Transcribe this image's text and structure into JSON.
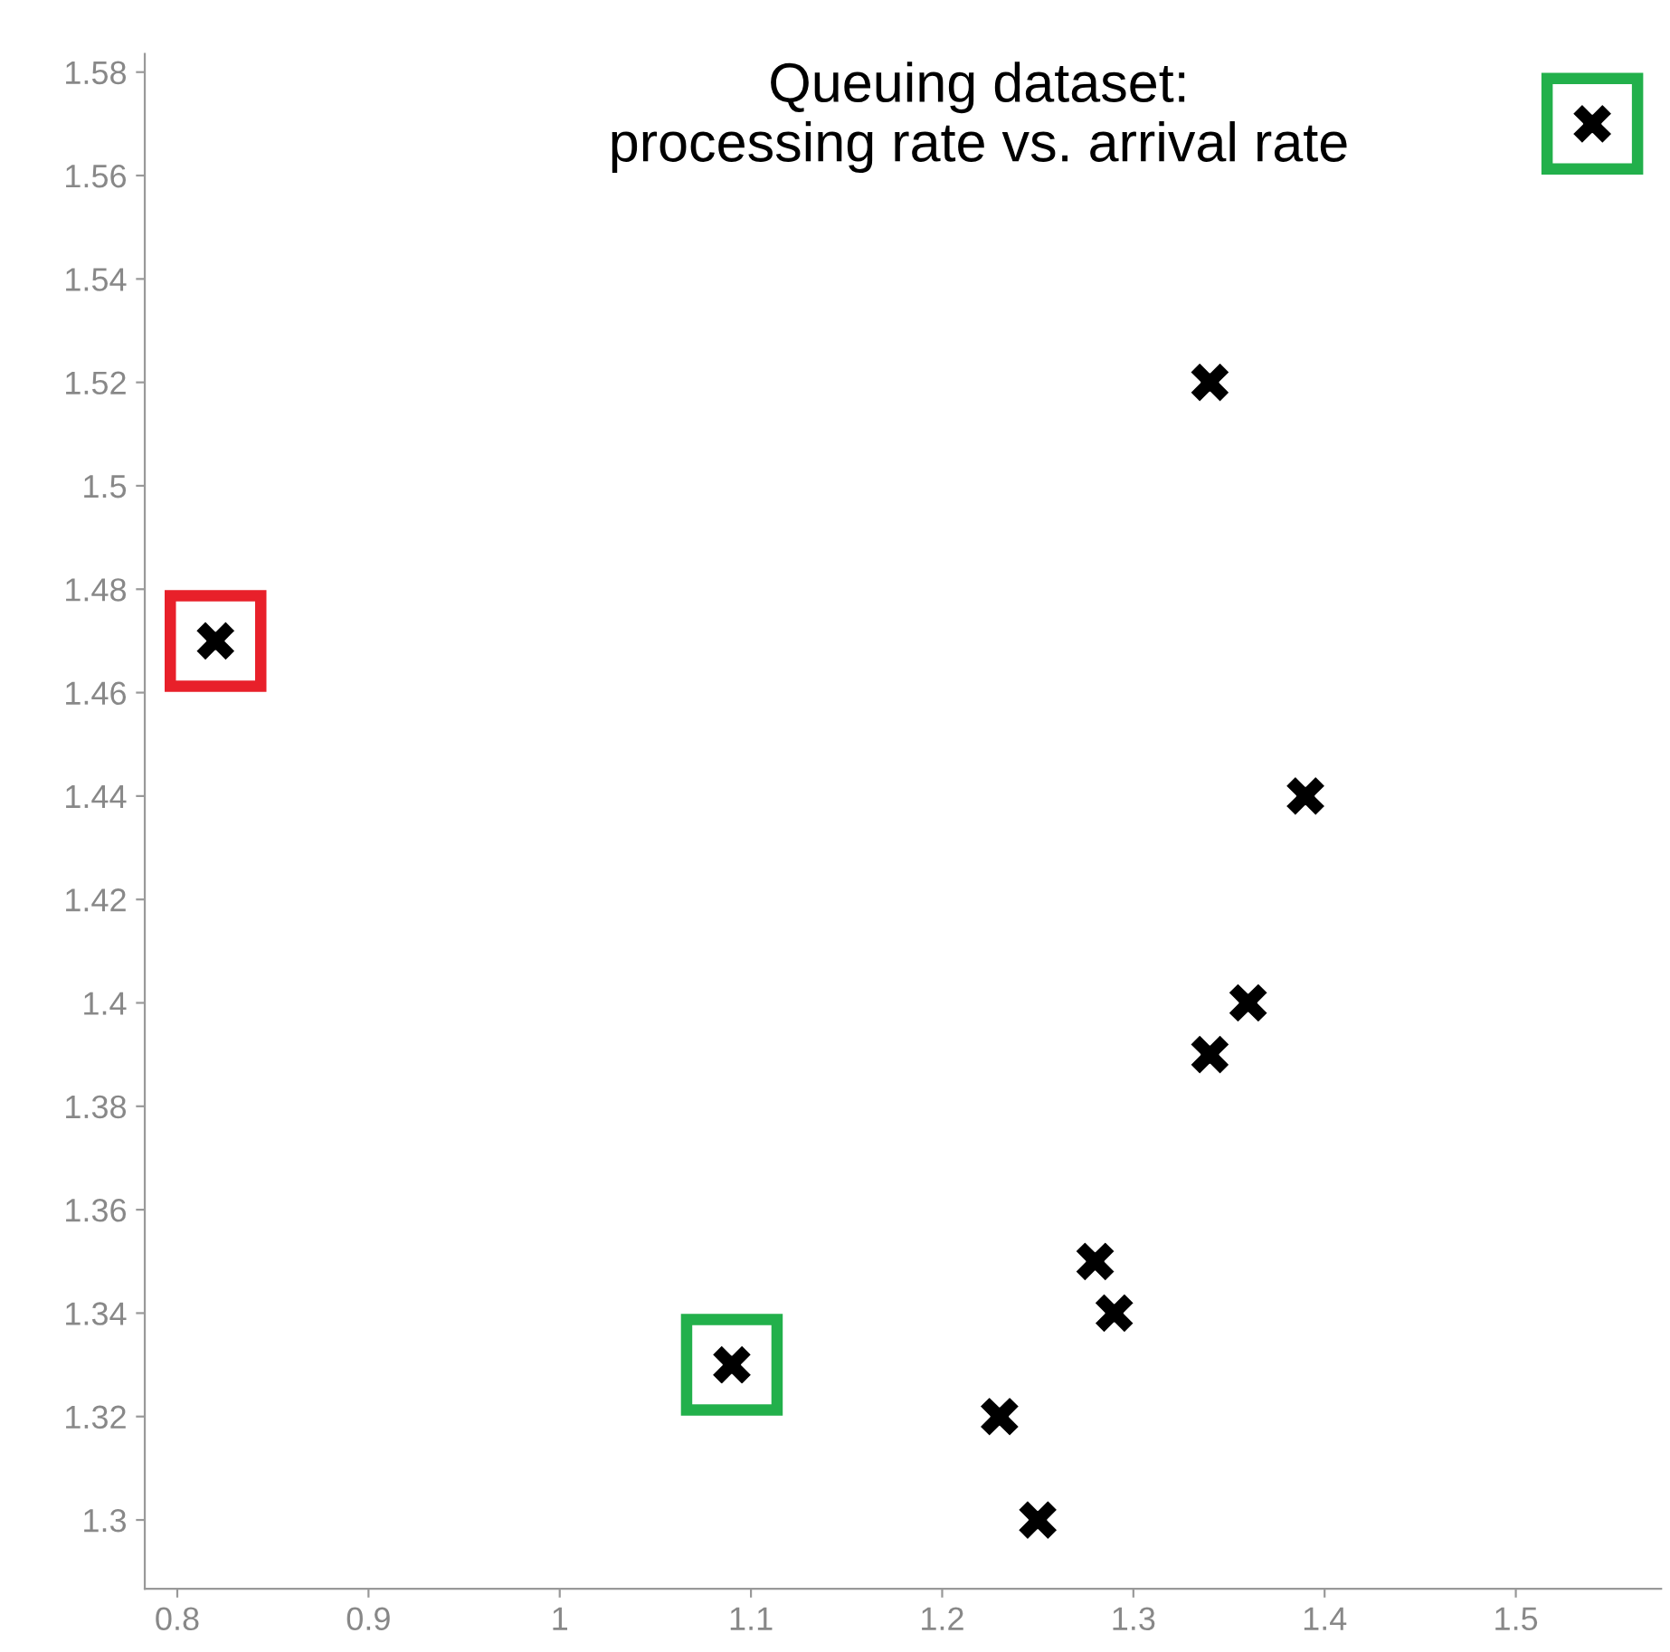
{
  "chart_data": {
    "type": "scatter",
    "title": "Queuing dataset:\nprocessing rate vs. arrival rate",
    "series": [
      {
        "color": "#000000",
        "marker": "cross",
        "x": [
          1.54,
          1.34,
          0.82,
          1.39,
          1.36,
          1.34,
          1.28,
          1.29,
          1.09,
          1.23,
          1.25
        ],
        "values": [
          1.57,
          1.52,
          1.47,
          1.44,
          1.4,
          1.39,
          1.35,
          1.34,
          1.33,
          1.32,
          1.3
        ]
      }
    ],
    "xlim": [
      0.783,
      1.576
    ],
    "ylim": [
      1.2867,
      1.5835
    ],
    "xticks": [
      0.8,
      0.9,
      1,
      1.1,
      1.2,
      1.3,
      1.4,
      1.5
    ],
    "yticks": [
      1.3,
      1.32,
      1.34,
      1.36,
      1.38,
      1.4,
      1.42,
      1.44,
      1.46,
      1.48,
      1.5,
      1.52,
      1.54,
      1.56,
      1.58
    ],
    "grid": false,
    "legend": false
  }
}
